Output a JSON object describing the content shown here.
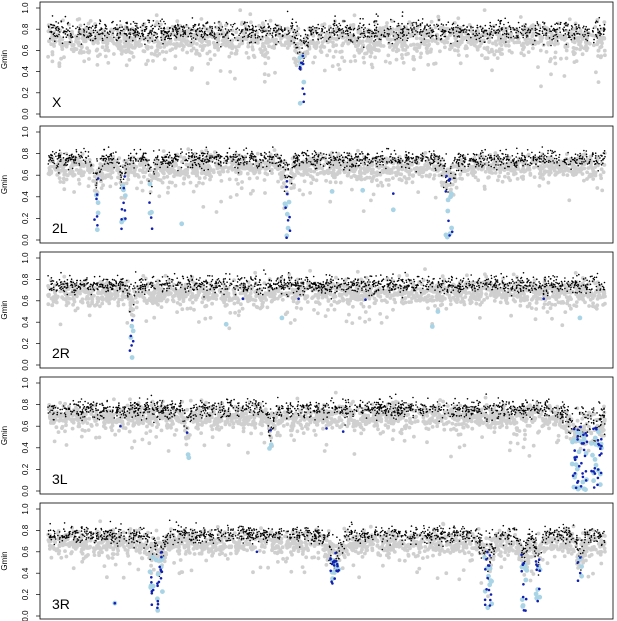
{
  "colors": {
    "grey": "#cfcfcf",
    "black": "#000000",
    "blue": "#1020b0",
    "lightblue": "#a8d4e6"
  },
  "chart_data": [
    {
      "type": "scatter",
      "label": "X",
      "ylabel": "Gmin",
      "ylim": [
        0,
        1.0
      ],
      "yticks": [
        "0.0",
        "0.2",
        "0.4",
        "0.6",
        "0.8",
        "1.0"
      ],
      "xlim": [
        0,
        1
      ],
      "baseline": {
        "black": 0.78,
        "grey": 0.7,
        "black_sd": 0.05,
        "grey_sd": 0.08
      },
      "dips": [
        {
          "x": 0.455,
          "width": 0.006,
          "min": 0.08,
          "blue_count": 10,
          "lightblue_count": 5
        }
      ],
      "outliers": []
    },
    {
      "type": "scatter",
      "label": "2L",
      "ylabel": "Gmin",
      "ylim": [
        0,
        1.0
      ],
      "yticks": [
        "0.0",
        "0.2",
        "0.4",
        "0.6",
        "0.8",
        "1.0"
      ],
      "xlim": [
        0,
        1
      ],
      "baseline": {
        "black": 0.75,
        "grey": 0.67,
        "black_sd": 0.04,
        "grey_sd": 0.06
      },
      "dips": [
        {
          "x": 0.087,
          "width": 0.004,
          "min": 0.02,
          "blue_count": 6,
          "lightblue_count": 5
        },
        {
          "x": 0.135,
          "width": 0.004,
          "min": 0.02,
          "blue_count": 8,
          "lightblue_count": 6
        },
        {
          "x": 0.185,
          "width": 0.003,
          "min": 0.05,
          "blue_count": 3,
          "lightblue_count": 3
        },
        {
          "x": 0.43,
          "width": 0.005,
          "min": 0.02,
          "blue_count": 8,
          "lightblue_count": 6
        },
        {
          "x": 0.72,
          "width": 0.006,
          "min": 0.01,
          "blue_count": 8,
          "lightblue_count": 8
        }
      ],
      "outliers": [
        {
          "x": 0.24,
          "y": 0.15,
          "c": "lightblue"
        },
        {
          "x": 0.51,
          "y": 0.45,
          "c": "lightblue"
        },
        {
          "x": 0.565,
          "y": 0.46,
          "c": "lightblue"
        },
        {
          "x": 0.62,
          "y": 0.28,
          "c": "lightblue"
        },
        {
          "x": 0.62,
          "y": 0.43,
          "c": "blue"
        }
      ]
    },
    {
      "type": "scatter",
      "label": "2R",
      "ylabel": "Gmin",
      "ylim": [
        0,
        1.0
      ],
      "yticks": [
        "0.0",
        "0.2",
        "0.4",
        "0.6",
        "0.8",
        "1.0"
      ],
      "xlim": [
        0,
        1
      ],
      "baseline": {
        "black": 0.75,
        "grey": 0.67,
        "black_sd": 0.04,
        "grey_sd": 0.06
      },
      "dips": [
        {
          "x": 0.15,
          "width": 0.003,
          "min": 0.02,
          "blue_count": 5,
          "lightblue_count": 4
        }
      ],
      "outliers": [
        {
          "x": 0.32,
          "y": 0.38,
          "c": "lightblue"
        },
        {
          "x": 0.42,
          "y": 0.44,
          "c": "lightblue"
        },
        {
          "x": 0.69,
          "y": 0.36,
          "c": "lightblue"
        },
        {
          "x": 0.7,
          "y": 0.5,
          "c": "lightblue"
        },
        {
          "x": 0.955,
          "y": 0.44,
          "c": "lightblue"
        },
        {
          "x": 0.35,
          "y": 0.62,
          "c": "blue"
        },
        {
          "x": 0.45,
          "y": 0.62,
          "c": "blue"
        },
        {
          "x": 0.57,
          "y": 0.61,
          "c": "blue"
        },
        {
          "x": 0.89,
          "y": 0.62,
          "c": "blue"
        }
      ]
    },
    {
      "type": "scatter",
      "label": "3L",
      "ylabel": "Gmin",
      "ylim": [
        0,
        1.0
      ],
      "yticks": [
        "0.0",
        "0.2",
        "0.4",
        "0.6",
        "0.8",
        "1.0"
      ],
      "xlim": [
        0,
        1
      ],
      "baseline": {
        "black": 0.76,
        "grey": 0.68,
        "black_sd": 0.04,
        "grey_sd": 0.06
      },
      "dips": [
        {
          "x": 0.25,
          "width": 0.003,
          "min": 0.26,
          "blue_count": 1,
          "lightblue_count": 2
        },
        {
          "x": 0.4,
          "width": 0.003,
          "min": 0.33,
          "blue_count": 1,
          "lightblue_count": 2
        },
        {
          "x": 0.955,
          "width": 0.014,
          "min": 0.01,
          "blue_count": 30,
          "lightblue_count": 25
        },
        {
          "x": 0.985,
          "width": 0.01,
          "min": 0.02,
          "blue_count": 20,
          "lightblue_count": 15
        }
      ],
      "outliers": [
        {
          "x": 0.13,
          "y": 0.6,
          "c": "blue"
        },
        {
          "x": 0.5,
          "y": 0.58,
          "c": "blue"
        },
        {
          "x": 0.53,
          "y": 0.55,
          "c": "blue"
        }
      ]
    },
    {
      "type": "scatter",
      "label": "3R",
      "ylabel": "Gmin",
      "ylim": [
        0,
        1.0
      ],
      "yticks": [
        "0.0",
        "0.2",
        "0.4",
        "0.6",
        "0.8",
        "1.0"
      ],
      "xlim": [
        0,
        1
      ],
      "baseline": {
        "black": 0.76,
        "grey": 0.68,
        "black_sd": 0.04,
        "grey_sd": 0.06
      },
      "dips": [
        {
          "x": 0.185,
          "width": 0.004,
          "min": 0.02,
          "blue_count": 6,
          "lightblue_count": 5
        },
        {
          "x": 0.2,
          "width": 0.006,
          "min": 0.02,
          "blue_count": 14,
          "lightblue_count": 8
        },
        {
          "x": 0.515,
          "width": 0.008,
          "min": 0.28,
          "blue_count": 18,
          "lightblue_count": 8
        },
        {
          "x": 0.79,
          "width": 0.007,
          "min": 0.01,
          "blue_count": 14,
          "lightblue_count": 10
        },
        {
          "x": 0.855,
          "width": 0.005,
          "min": 0.05,
          "blue_count": 9,
          "lightblue_count": 8
        },
        {
          "x": 0.88,
          "width": 0.004,
          "min": 0.1,
          "blue_count": 8,
          "lightblue_count": 6
        },
        {
          "x": 0.955,
          "width": 0.004,
          "min": 0.32,
          "blue_count": 4,
          "lightblue_count": 4
        }
      ],
      "outliers": [
        {
          "x": 0.12,
          "y": 0.12,
          "c": "lightblue"
        },
        {
          "x": 0.12,
          "y": 0.12,
          "c": "blue"
        },
        {
          "x": 0.375,
          "y": 0.6,
          "c": "blue"
        }
      ]
    }
  ]
}
